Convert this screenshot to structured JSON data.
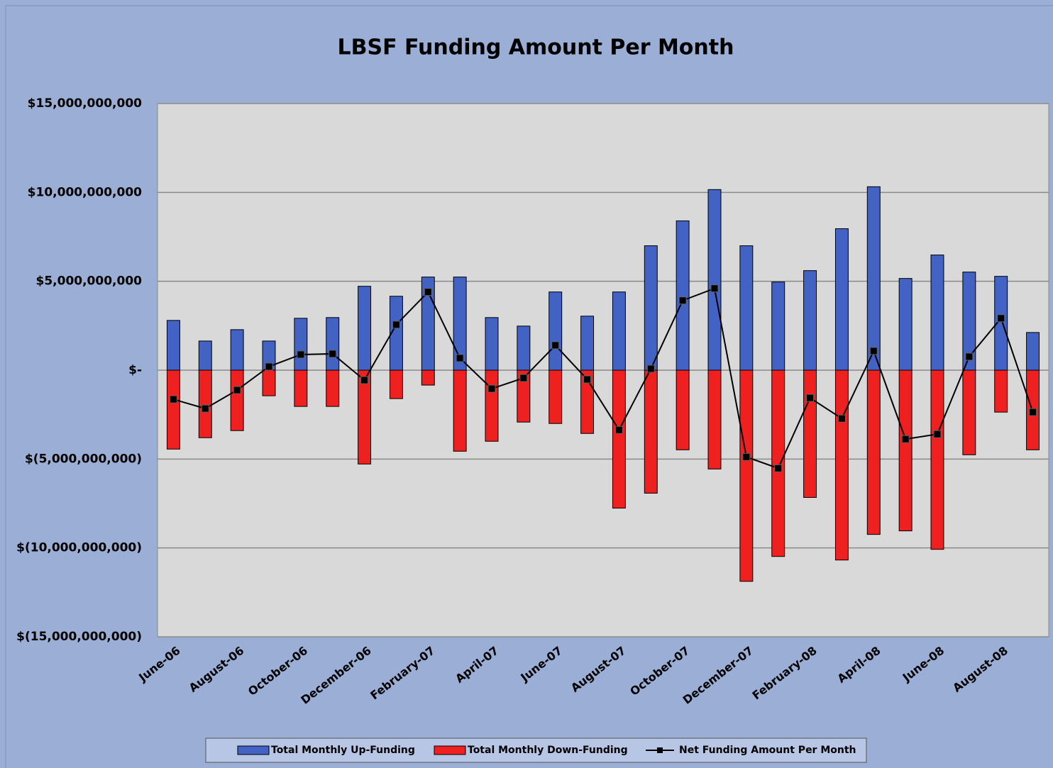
{
  "chart_data": {
    "type": "bar",
    "title": "LBSF Funding Amount Per Month",
    "categories": [
      "June-06",
      null,
      "August-06",
      null,
      "October-06",
      null,
      "December-06",
      null,
      "February-07",
      null,
      "April-07",
      null,
      "June-07",
      null,
      "August-07",
      null,
      "October-07",
      null,
      "December-07",
      null,
      "February-08",
      null,
      "April-08",
      null,
      "June-08",
      null,
      "August-08",
      null
    ],
    "series": [
      {
        "name": "Total Monthly Up-Funding",
        "color": "#4262c4",
        "values": [
          2800000000,
          1640000000,
          2280000000,
          1640000000,
          2920000000,
          2960000000,
          4720000000,
          4160000000,
          5240000000,
          5240000000,
          2960000000,
          2480000000,
          4400000000,
          3040000000,
          4400000000,
          7000000000,
          8400000000,
          10160000000,
          7000000000,
          4960000000,
          5600000000,
          7960000000,
          10320000000,
          5160000000,
          6480000000,
          5520000000,
          5280000000,
          2120000000
        ]
      },
      {
        "name": "Total Monthly Down-Funding",
        "color": "#ee2020",
        "values": [
          -4440000000,
          -3800000000,
          -3400000000,
          -1440000000,
          -2040000000,
          -2040000000,
          -5280000000,
          -1600000000,
          -840000000,
          -4560000000,
          -4000000000,
          -2920000000,
          -3000000000,
          -3560000000,
          -7760000000,
          -6920000000,
          -4480000000,
          -5560000000,
          -11880000000,
          -10480000000,
          -7160000000,
          -10680000000,
          -9240000000,
          -9040000000,
          -10080000000,
          -4760000000,
          -2360000000,
          -4480000000
        ]
      },
      {
        "name": "Net Funding Amount Per Month",
        "color": "#000000",
        "type": "line",
        "values": [
          -1640000000,
          -2160000000,
          -1120000000,
          200000000,
          880000000,
          920000000,
          -560000000,
          2560000000,
          4400000000,
          680000000,
          -1040000000,
          -440000000,
          1400000000,
          -520000000,
          -3360000000,
          80000000,
          3920000000,
          4600000000,
          -4880000000,
          -5520000000,
          -1560000000,
          -2720000000,
          1080000000,
          -3880000000,
          -3600000000,
          760000000,
          2920000000,
          -2360000000
        ]
      }
    ],
    "ylim": [
      -15000000000,
      15000000000
    ],
    "yticks": [
      {
        "value": -15000000000,
        "label": "$(15,000,000,000)"
      },
      {
        "value": -10000000000,
        "label": "$(10,000,000,000)"
      },
      {
        "value": -5000000000,
        "label": "$(5,000,000,000)"
      },
      {
        "value": 0,
        "label": "$-"
      },
      {
        "value": 5000000000,
        "label": "$5,000,000,000"
      },
      {
        "value": 10000000000,
        "label": "$10,000,000,000"
      },
      {
        "value": 15000000000,
        "label": "$15,000,000,000"
      }
    ],
    "grid": true,
    "legend": "bottom"
  }
}
